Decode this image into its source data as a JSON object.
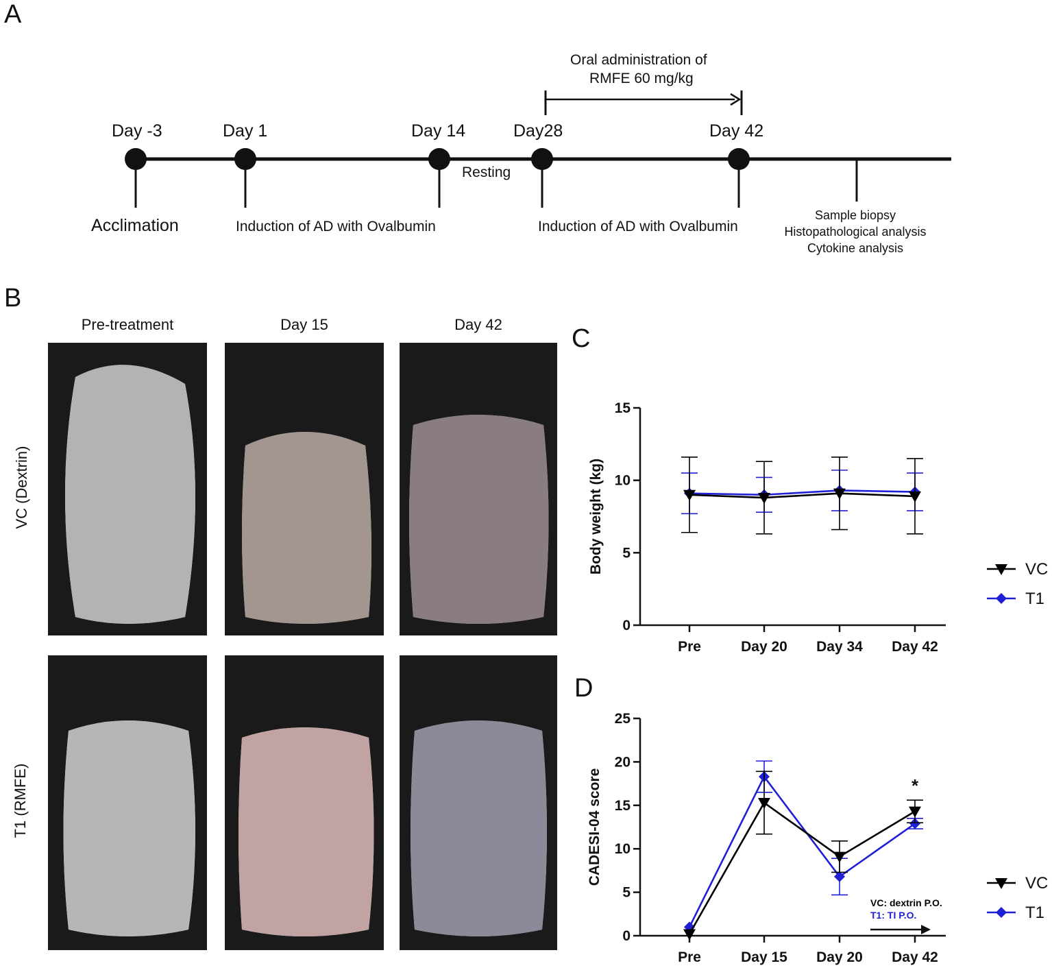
{
  "panels": {
    "a": "A",
    "b": "B",
    "c": "C",
    "d": "D"
  },
  "timeline": {
    "oral_admin_line1": "Oral administration of",
    "oral_admin_line2": "RMFE 60 mg/kg",
    "days": [
      "Day -3",
      "Day 1",
      "Day 14",
      "Day28",
      "Day 42"
    ],
    "resting": "Resting",
    "acclimation": "Acclimation",
    "induction_1": "Induction of AD with Ovalbumin",
    "induction_2": "Induction of AD with Ovalbumin",
    "final_lines": [
      "Sample biopsy",
      "Histopathological analysis",
      "Cytokine analysis"
    ]
  },
  "photos": {
    "columns": [
      "Pre-treatment",
      "Day 15",
      "Day 42"
    ],
    "rows": [
      "VC (Dextrin)",
      "T1 (RMFE)"
    ]
  },
  "colors": {
    "vc": "#000000",
    "t1": "#1f1fd6"
  },
  "chart_data": [
    {
      "type": "line",
      "panel": "C",
      "ylabel": "Body weight  (kg)",
      "categories": [
        "Pre",
        "Day 20",
        "Day 34",
        "Day 42"
      ],
      "ylim": [
        0,
        15
      ],
      "yticks": [
        0,
        5,
        10,
        15
      ],
      "series": [
        {
          "name": "VC",
          "values": [
            9.0,
            8.8,
            9.1,
            8.9
          ],
          "err": [
            2.6,
            2.5,
            2.5,
            2.6
          ],
          "marker": "triangle-down"
        },
        {
          "name": "T1",
          "values": [
            9.1,
            9.0,
            9.3,
            9.2
          ],
          "err": [
            1.4,
            1.2,
            1.4,
            1.3
          ],
          "marker": "diamond"
        }
      ],
      "legend": "right"
    },
    {
      "type": "line",
      "panel": "D",
      "ylabel": "CADESI-04 score",
      "categories": [
        "Pre",
        "Day 15",
        "Day 20",
        "Day 42"
      ],
      "ylim": [
        0,
        25
      ],
      "yticks": [
        0,
        5,
        10,
        15,
        20,
        25
      ],
      "series": [
        {
          "name": "VC",
          "values": [
            0.2,
            15.3,
            9.1,
            14.3
          ],
          "err": [
            0,
            3.6,
            1.8,
            1.3
          ],
          "marker": "triangle-down"
        },
        {
          "name": "T1",
          "values": [
            1.0,
            18.3,
            6.8,
            12.9
          ],
          "err": [
            0,
            1.8,
            2.1,
            0.6
          ],
          "marker": "diamond"
        }
      ],
      "annotation": "*",
      "note_vc": "VC: dextrin P.O.",
      "note_t1": "T1: TI P.O.",
      "legend": "right"
    }
  ]
}
